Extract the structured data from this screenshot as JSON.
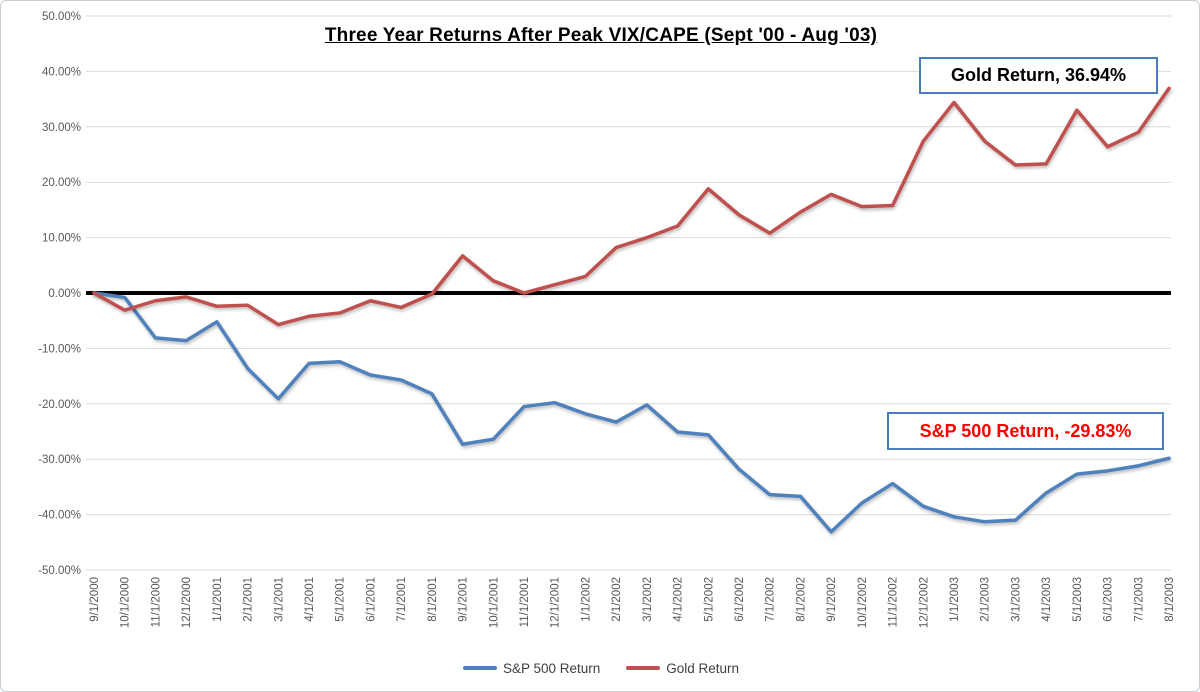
{
  "chart": {
    "title": "Three Year Returns After Peak VIX/CAPE (Sept '00 - Aug '03)",
    "callouts": {
      "gold": "Gold Return, 36.94%",
      "sp500": "S&P 500 Return, -29.83%"
    }
  },
  "colors": {
    "sp500_line": "#4F81BD",
    "gold_line": "#C0504D",
    "callout_border": "#4A7EBB",
    "gold_callout_text": "#000000",
    "sp500_callout_text": "#FF0000",
    "zero_axis": "#000000",
    "gridline": "#D9D9D9",
    "tick_text": "#595959"
  },
  "chart_data": {
    "type": "line",
    "title": "Three Year Returns After Peak VIX/CAPE (Sept '00 - Aug '03)",
    "xlabel": "",
    "ylabel": "",
    "ylim": [
      -50,
      50
    ],
    "grid": true,
    "legend_position": "bottom",
    "ytick_labels": [
      "50.00%",
      "40.00%",
      "30.00%",
      "20.00%",
      "10.00%",
      "0.00%",
      "-10.00%",
      "-20.00%",
      "-30.00%",
      "-40.00%",
      "-50.00%"
    ],
    "x": [
      "9/1/2000",
      "10/1/2000",
      "11/1/2000",
      "12/1/2000",
      "1/1/2001",
      "2/1/2001",
      "3/1/2001",
      "4/1/2001",
      "5/1/2001",
      "6/1/2001",
      "7/1/2001",
      "8/1/2001",
      "9/1/2001",
      "10/1/2001",
      "11/1/2001",
      "12/1/2001",
      "1/1/2002",
      "2/1/2002",
      "3/1/2002",
      "4/1/2002",
      "5/1/2002",
      "6/1/2002",
      "7/1/2002",
      "8/1/2002",
      "9/1/2002",
      "10/1/2002",
      "11/1/2002",
      "12/1/2002",
      "1/1/2003",
      "2/1/2003",
      "3/1/2003",
      "4/1/2003",
      "5/1/2003",
      "6/1/2003",
      "7/1/2003",
      "8/1/2003"
    ],
    "series": [
      {
        "name": "S&P 500 Return",
        "color": "#4F81BD",
        "values": [
          0.0,
          -0.8,
          -8.1,
          -8.6,
          -5.2,
          -13.6,
          -19.1,
          -12.7,
          -12.4,
          -14.8,
          -15.7,
          -18.2,
          -27.3,
          -26.4,
          -20.5,
          -19.8,
          -21.8,
          -23.3,
          -20.2,
          -25.1,
          -25.6,
          -31.8,
          -36.4,
          -36.7,
          -43.1,
          -37.9,
          -34.4,
          -38.5,
          -40.4,
          -41.3,
          -41.0,
          -36.1,
          -32.7,
          -32.1,
          -31.2,
          -29.83
        ]
      },
      {
        "name": "Gold Return",
        "color": "#C0504D",
        "values": [
          0.0,
          -3.1,
          -1.4,
          -0.7,
          -2.4,
          -2.2,
          -5.7,
          -4.2,
          -3.6,
          -1.4,
          -2.6,
          -0.2,
          6.7,
          2.2,
          0.0,
          1.5,
          3.0,
          8.2,
          10.0,
          12.1,
          18.8,
          14.1,
          10.8,
          14.6,
          17.8,
          15.6,
          15.8,
          27.4,
          34.4,
          27.4,
          23.1,
          23.3,
          33.0,
          26.4,
          29.0,
          36.94
        ]
      }
    ],
    "annotations": [
      {
        "text": "Gold Return, 36.94%",
        "series": "Gold Return",
        "text_color": "#000000",
        "box_border": "#4A7EBB"
      },
      {
        "text": "S&P 500 Return, -29.83%",
        "series": "S&P 500 Return",
        "text_color": "#FF0000",
        "box_border": "#4A7EBB"
      }
    ]
  }
}
